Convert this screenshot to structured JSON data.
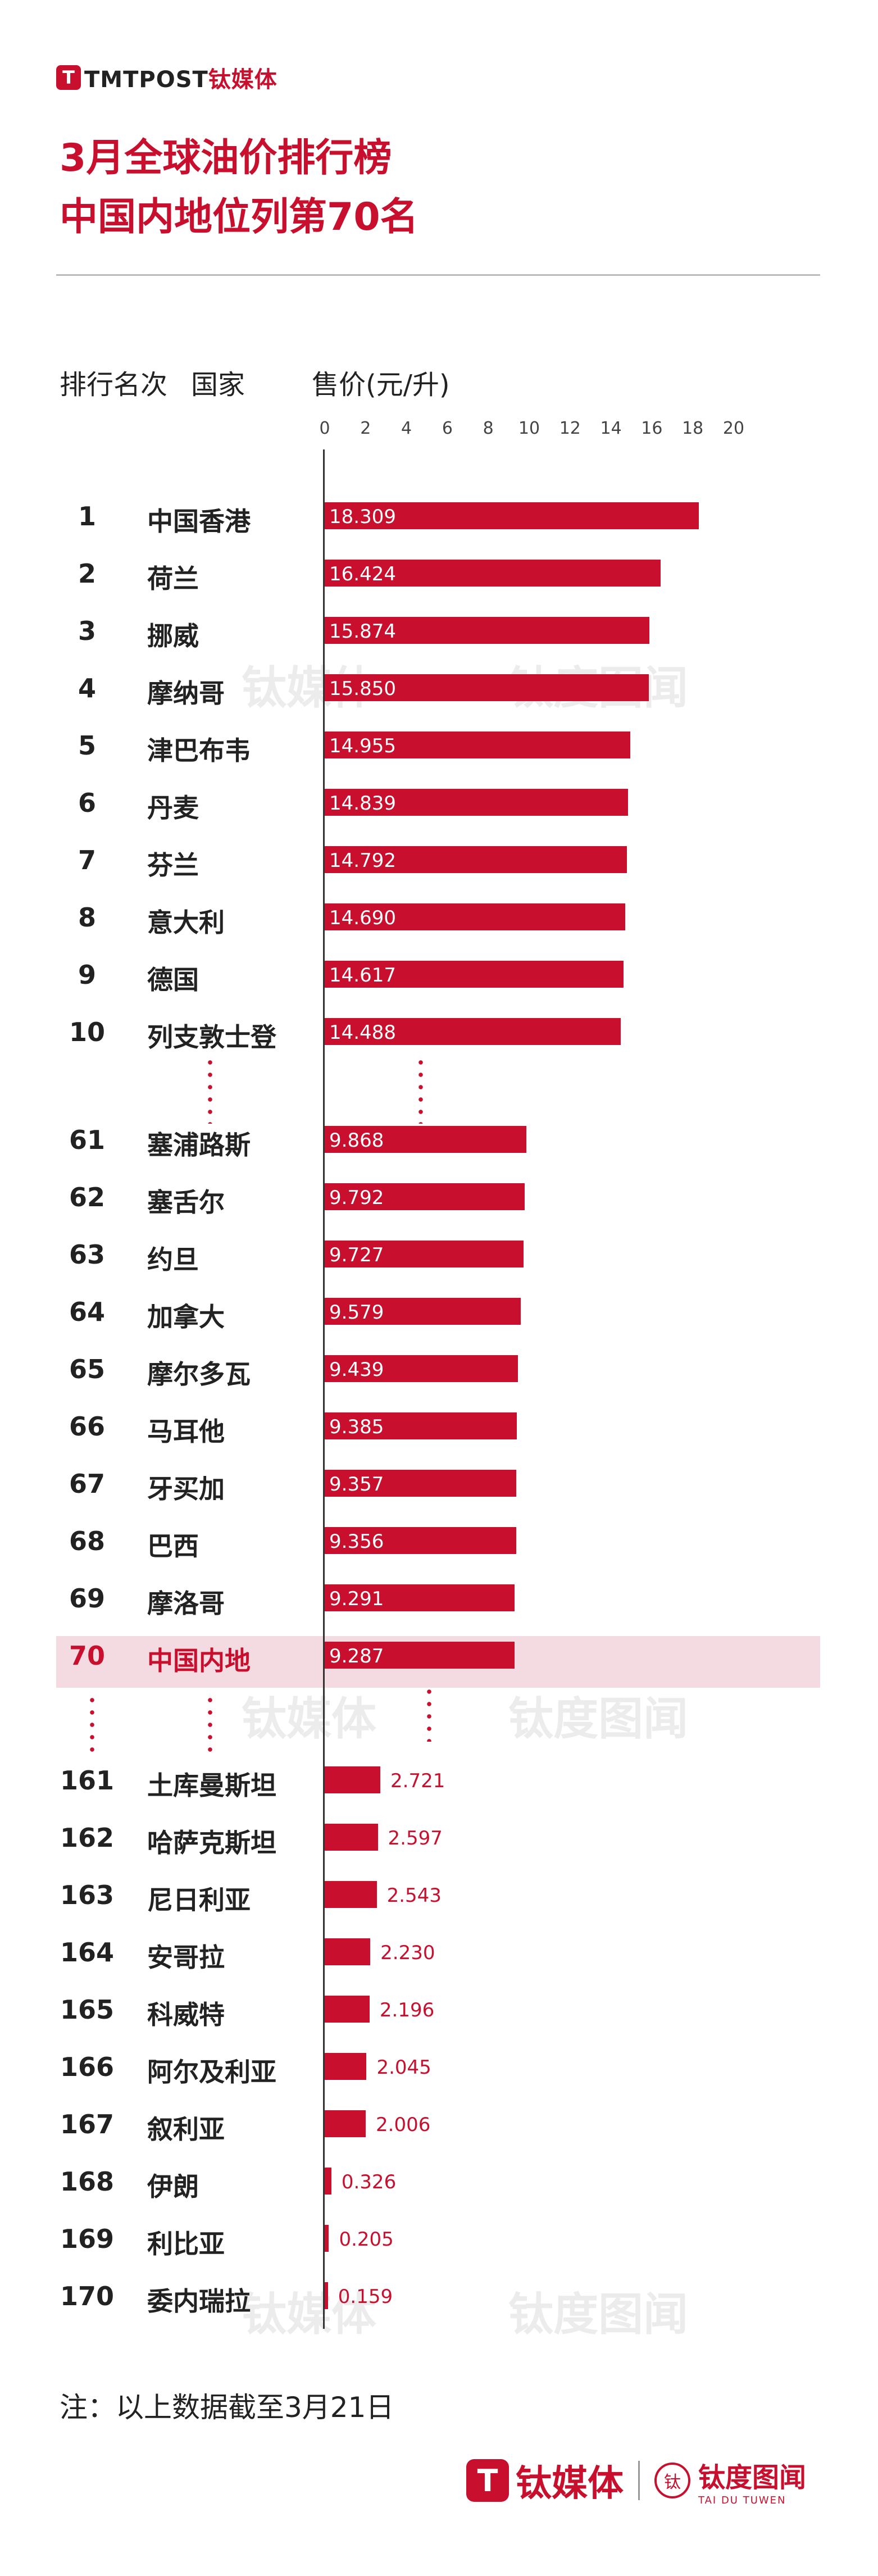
{
  "brand": {
    "logo_glyph": "T",
    "logo_latin": "TMTPOST",
    "logo_cn": "钛媒体",
    "partner_logo_glyph": "钛",
    "partner_name": "钛度图闻",
    "partner_latin": "TAI DU TUWEN"
  },
  "title": {
    "line1": "3月全球油价排行榜",
    "line2": "中国内地位列第70名"
  },
  "headers": {
    "rank": "排行名次",
    "country": "国家",
    "price": "售价(元/升)"
  },
  "note": "注：以上数据截至3月21日",
  "colors": {
    "accent": "#c8102e",
    "highlight_bg": "#f4dbe1"
  },
  "chart_data": {
    "type": "bar",
    "orientation": "horizontal",
    "title": "3月全球油价排行榜",
    "xlabel": "售价(元/升)",
    "xlim": [
      0,
      20
    ],
    "xticks": [
      "0",
      "2",
      "4",
      "6",
      "8",
      "10",
      "12",
      "14",
      "16",
      "18",
      "20"
    ],
    "highlight_rank": "70",
    "rows": [
      {
        "rank": "1",
        "country": "中国香港",
        "value": 18.309,
        "label": "18.309"
      },
      {
        "rank": "2",
        "country": "荷兰",
        "value": 16.424,
        "label": "16.424"
      },
      {
        "rank": "3",
        "country": "挪威",
        "value": 15.874,
        "label": "15.874"
      },
      {
        "rank": "4",
        "country": "摩纳哥",
        "value": 15.85,
        "label": "15.850"
      },
      {
        "rank": "5",
        "country": "津巴布韦",
        "value": 14.955,
        "label": "14.955"
      },
      {
        "rank": "6",
        "country": "丹麦",
        "value": 14.839,
        "label": "14.839"
      },
      {
        "rank": "7",
        "country": "芬兰",
        "value": 14.792,
        "label": "14.792"
      },
      {
        "rank": "8",
        "country": "意大利",
        "value": 14.69,
        "label": "14.690"
      },
      {
        "rank": "9",
        "country": "德国",
        "value": 14.617,
        "label": "14.617"
      },
      {
        "rank": "10",
        "country": "列支敦士登",
        "value": 14.488,
        "label": "14.488"
      },
      {
        "rank": "61",
        "country": "塞浦路斯",
        "value": 9.868,
        "label": "9.868"
      },
      {
        "rank": "62",
        "country": "塞舌尔",
        "value": 9.792,
        "label": "9.792"
      },
      {
        "rank": "63",
        "country": "约旦",
        "value": 9.727,
        "label": "9.727"
      },
      {
        "rank": "64",
        "country": "加拿大",
        "value": 9.579,
        "label": "9.579"
      },
      {
        "rank": "65",
        "country": "摩尔多瓦",
        "value": 9.439,
        "label": "9.439"
      },
      {
        "rank": "66",
        "country": "马耳他",
        "value": 9.385,
        "label": "9.385"
      },
      {
        "rank": "67",
        "country": "牙买加",
        "value": 9.357,
        "label": "9.357"
      },
      {
        "rank": "68",
        "country": "巴西",
        "value": 9.356,
        "label": "9.356"
      },
      {
        "rank": "69",
        "country": "摩洛哥",
        "value": 9.291,
        "label": "9.291"
      },
      {
        "rank": "70",
        "country": "中国内地",
        "value": 9.287,
        "label": "9.287"
      },
      {
        "rank": "161",
        "country": "土库曼斯坦",
        "value": 2.721,
        "label": "2.721"
      },
      {
        "rank": "162",
        "country": "哈萨克斯坦",
        "value": 2.597,
        "label": "2.597"
      },
      {
        "rank": "163",
        "country": "尼日利亚",
        "value": 2.543,
        "label": "2.543"
      },
      {
        "rank": "164",
        "country": "安哥拉",
        "value": 2.23,
        "label": "2.230"
      },
      {
        "rank": "165",
        "country": "科威特",
        "value": 2.196,
        "label": "2.196"
      },
      {
        "rank": "166",
        "country": "阿尔及利亚",
        "value": 2.045,
        "label": "2.045"
      },
      {
        "rank": "167",
        "country": "叙利亚",
        "value": 2.006,
        "label": "2.006"
      },
      {
        "rank": "168",
        "country": "伊朗",
        "value": 0.326,
        "label": "0.326"
      },
      {
        "rank": "169",
        "country": "利比亚",
        "value": 0.205,
        "label": "0.205"
      },
      {
        "rank": "170",
        "country": "委内瑞拉",
        "value": 0.159,
        "label": "0.159"
      }
    ]
  }
}
